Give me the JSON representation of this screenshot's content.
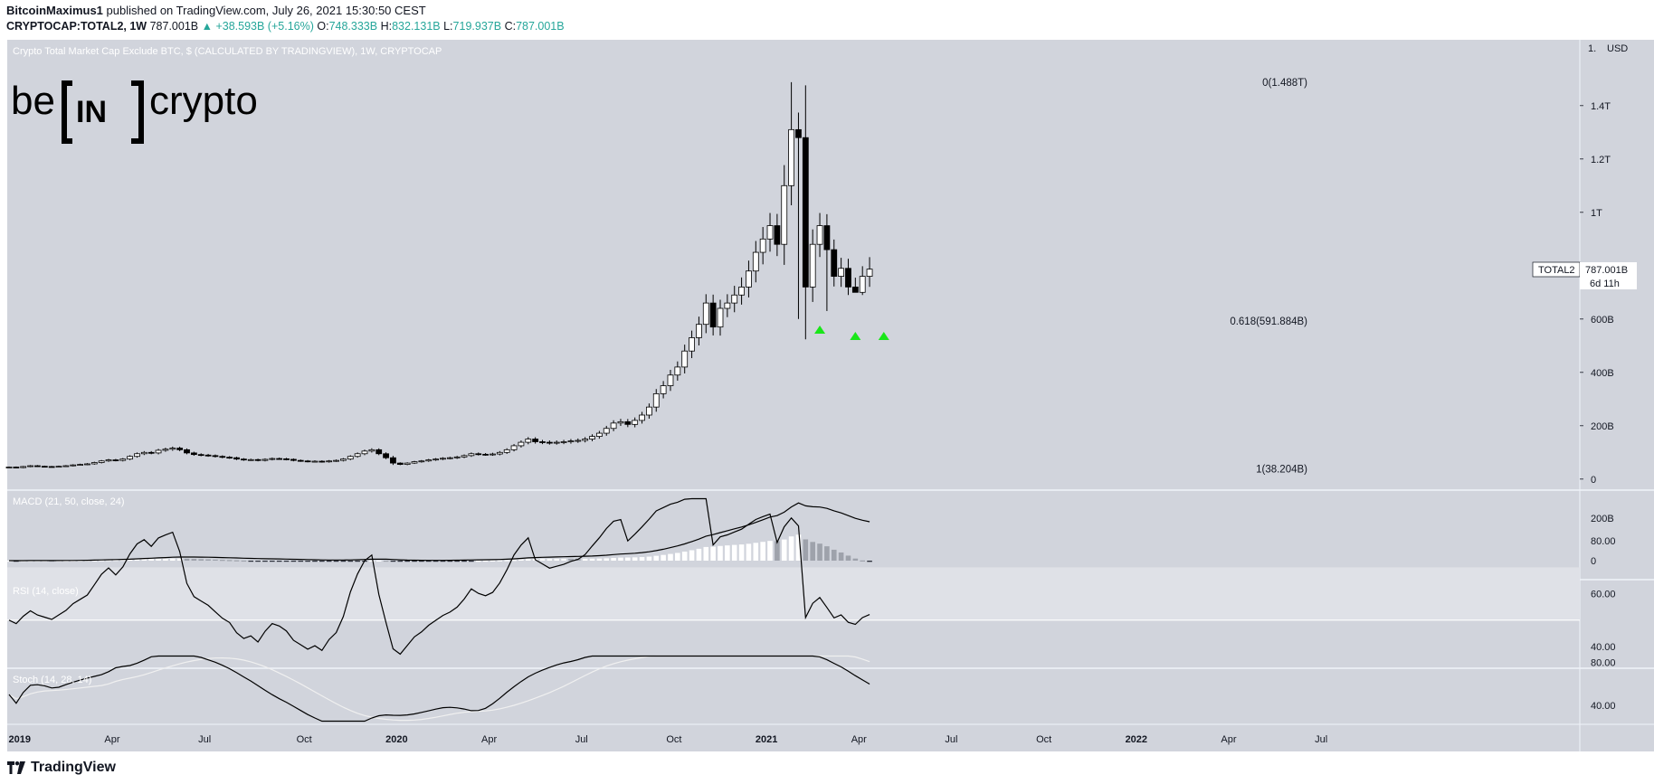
{
  "header": {
    "author": "BitcoinMaximus1",
    "published": "published on TradingView.com, July 26, 2021 15:30:50 CEST",
    "symbol": "CRYPTOCAP:TOTAL2, 1W",
    "last": "787.001B",
    "change": "+38.593B (+5.16%)",
    "o_label": "O:",
    "o": "748.333B",
    "h_label": "H:",
    "h": "832.131B",
    "l_label": "L:",
    "l": "719.937B",
    "c_label": "C:",
    "c": "787.001B"
  },
  "footer": {
    "brand": "TradingView"
  },
  "watermark": {
    "text": "be[IN]crypto"
  },
  "colors": {
    "pane_bg": "#d1d4dc",
    "rsi_band": "#dfe1e7",
    "up_body": "#ffffff",
    "down_body": "#000000",
    "hist_light": "#ffffff",
    "hist_gray": "#9ea2ab",
    "hist_dark": "#2a2e39",
    "marker": "#19e619",
    "stoch_d": "#f0f0f0"
  },
  "chart_data": {
    "type": "candlestick",
    "title": "Crypto Total Market Cap Exclude BTC, $ (CALCULATED BY TRADINGVIEW), 1W, CRYPTOCAP",
    "currency_label": "USD",
    "ylim": [
      0,
      1.5
    ],
    "y_ticks": [
      {
        "value": 0,
        "label": "0"
      },
      {
        "value": 0.2,
        "label": "200B"
      },
      {
        "value": 0.4,
        "label": "400B"
      },
      {
        "value": 0.6,
        "label": "600B"
      },
      {
        "value": 1.0,
        "label": "1T"
      },
      {
        "value": 1.2,
        "label": "1.2T"
      },
      {
        "value": 1.4,
        "label": "1.4T"
      }
    ],
    "x_labels": [
      "2019",
      "Apr",
      "Jul",
      "Oct",
      "2020",
      "Apr",
      "Jul",
      "Oct",
      "2021",
      "Apr",
      "Jul",
      "Oct",
      "2022",
      "Apr",
      "Jul"
    ],
    "x_label_weeks": [
      1.5,
      14.5,
      27.5,
      41.5,
      54.5,
      67.5,
      80.5,
      93.5,
      106.5,
      119.5,
      132.5,
      145.5,
      158.5,
      171.5,
      184.5
    ],
    "closes": [
      0.045,
      0.043,
      0.047,
      0.05,
      0.048,
      0.047,
      0.046,
      0.048,
      0.05,
      0.053,
      0.055,
      0.057,
      0.062,
      0.068,
      0.072,
      0.07,
      0.075,
      0.085,
      0.095,
      0.1,
      0.098,
      0.108,
      0.112,
      0.116,
      0.11,
      0.098,
      0.092,
      0.09,
      0.088,
      0.085,
      0.082,
      0.08,
      0.075,
      0.072,
      0.073,
      0.07,
      0.074,
      0.077,
      0.076,
      0.074,
      0.07,
      0.068,
      0.066,
      0.067,
      0.065,
      0.068,
      0.07,
      0.075,
      0.085,
      0.095,
      0.105,
      0.11,
      0.095,
      0.08,
      0.06,
      0.055,
      0.06,
      0.065,
      0.068,
      0.072,
      0.075,
      0.078,
      0.08,
      0.083,
      0.088,
      0.095,
      0.093,
      0.092,
      0.094,
      0.1,
      0.11,
      0.125,
      0.138,
      0.15,
      0.14,
      0.138,
      0.136,
      0.138,
      0.14,
      0.143,
      0.145,
      0.15,
      0.16,
      0.172,
      0.19,
      0.21,
      0.215,
      0.205,
      0.22,
      0.24,
      0.27,
      0.32,
      0.35,
      0.39,
      0.42,
      0.48,
      0.53,
      0.58,
      0.66,
      0.57,
      0.64,
      0.66,
      0.69,
      0.72,
      0.78,
      0.85,
      0.9,
      0.95,
      0.88,
      1.1,
      1.31,
      1.28,
      0.72,
      0.88,
      0.95,
      0.86,
      0.76,
      0.79,
      0.72,
      0.7,
      0.76,
      0.787
    ],
    "rsi_ticks": [
      40,
      60,
      80
    ],
    "rsi_band": [
      50,
      70
    ],
    "macd_ticks": [
      {
        "value": 0,
        "label": "0"
      },
      {
        "value": 200,
        "label": "200B"
      }
    ],
    "stoch_ticks": [
      40,
      80
    ],
    "fib_levels": [
      {
        "price": 1.488,
        "label": "0(1.488T)"
      },
      {
        "price": 0.592,
        "label": "0.618(591.884B)"
      },
      {
        "price": 0.038,
        "label": "1(38.204B)"
      }
    ],
    "markers_weeks": [
      114,
      119,
      123
    ],
    "last_price": {
      "label": "TOTAL2",
      "value": "787.001B",
      "countdown": "6d 11h"
    },
    "panes": [
      {
        "name": "MACD",
        "label": "MACD (21, 50, close, 24)"
      },
      {
        "name": "RSI",
        "label": "RSI (14, close)"
      },
      {
        "name": "Stoch",
        "label": "Stoch (14, 28, 14)"
      }
    ]
  }
}
